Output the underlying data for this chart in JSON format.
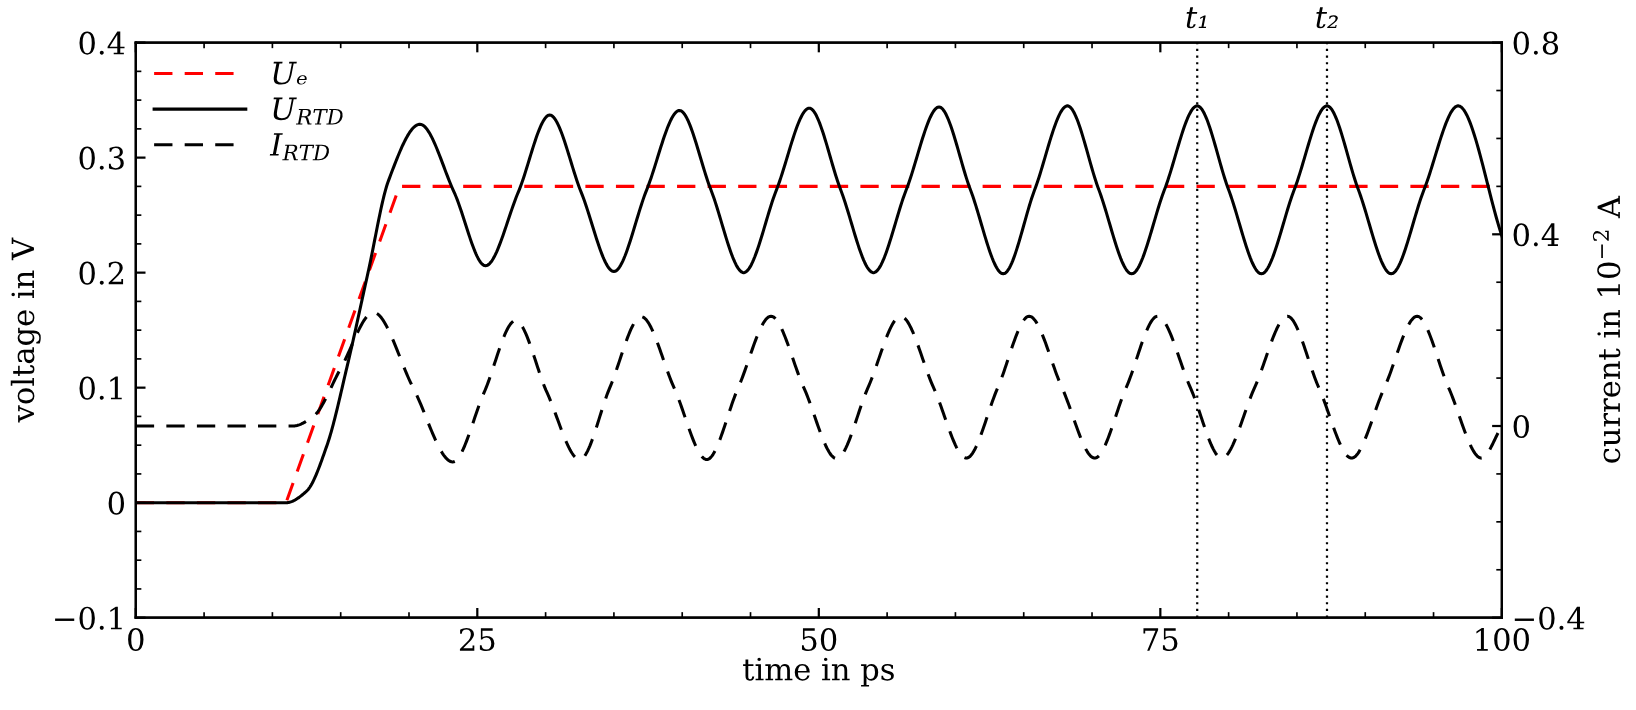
{
  "chart_data": {
    "type": "line",
    "xlabel": "time in ps",
    "ylabel": "voltage in V",
    "y2label": "current in 10$^{−2}$ A",
    "xlim": [
      0,
      100
    ],
    "xticks": [
      0,
      25,
      50,
      75,
      100
    ],
    "ylim": [
      -0.1,
      0.4
    ],
    "yticks": [
      {
        "value": -0.1,
        "label": "−0.1"
      },
      0,
      0.1,
      0.2,
      0.3,
      0.4
    ],
    "y2lim": [
      -0.4,
      0.8
    ],
    "y2ticks": [
      {
        "value": -0.4,
        "label": "−0.4"
      },
      0,
      0.4,
      0.8
    ],
    "grid": false,
    "legend": "top left",
    "marker": "none",
    "ref_lines": [
      {
        "axis": "x",
        "value": 77.7,
        "label": "t₁",
        "line_style": "dotted",
        "color": "#000000"
      },
      {
        "axis": "x",
        "value": 87.2,
        "label": "t₂",
        "line_style": "dotted",
        "color": "#000000"
      }
    ],
    "series": [
      {
        "name": "Uₑ",
        "color": "#ff0000",
        "line_style": "dashed",
        "x": [
          0,
          11,
          19.3,
          100
        ],
        "values": [
          0,
          0,
          0.275,
          0.275
        ]
      },
      {
        "name": "U$_{RTD}$",
        "color": "#000000",
        "line_style": "solid",
        "x": [
          0,
          11,
          12.5,
          14,
          15.5,
          17,
          18.5,
          20.8,
          23.3,
          25.6,
          28,
          30.3,
          32.6,
          35.0,
          37.4,
          39.8,
          42.1,
          44.5,
          46.9,
          49.3,
          51.6,
          54.0,
          56.4,
          58.8,
          61.1,
          63.5,
          65.8,
          68.2,
          70.5,
          72.9,
          75.3,
          77.7,
          80.0,
          82.4,
          84.8,
          87.2,
          89.5,
          91.9,
          94.3,
          96.8,
          100
        ],
        "values": [
          0,
          0,
          0.01,
          0.05,
          0.12,
          0.2,
          0.28,
          0.329,
          0.27,
          0.206,
          0.27,
          0.337,
          0.27,
          0.201,
          0.272,
          0.341,
          0.272,
          0.2,
          0.272,
          0.343,
          0.272,
          0.2,
          0.272,
          0.344,
          0.272,
          0.199,
          0.272,
          0.345,
          0.272,
          0.199,
          0.272,
          0.345,
          0.272,
          0.199,
          0.272,
          0.345,
          0.272,
          0.199,
          0.272,
          0.345,
          0.232
        ]
      },
      {
        "name": "I$_{RTD}$",
        "color": "#000000",
        "line_style": "dashed",
        "axis": "y2",
        "x": [
          0,
          11.5,
          13,
          15,
          17.4,
          20.3,
          23.2,
          25.5,
          27.8,
          30.1,
          32.5,
          34.7,
          37.0,
          39.4,
          41.8,
          44.1,
          46.5,
          48.9,
          51.3,
          53.6,
          56.0,
          58.4,
          60.8,
          63.1,
          65.4,
          67.8,
          70.2,
          72.5,
          74.8,
          77.2,
          79.5,
          81.9,
          84.3,
          86.6,
          89.0,
          91.4,
          93.8,
          96.1,
          98.5,
          100
        ],
        "values": [
          0,
          0,
          0.02,
          0.12,
          0.237,
          0.08,
          -0.075,
          0.07,
          0.22,
          0.07,
          -0.07,
          0.08,
          0.228,
          0.08,
          -0.07,
          0.08,
          0.229,
          0.08,
          -0.068,
          0.08,
          0.229,
          0.08,
          -0.067,
          0.08,
          0.229,
          0.08,
          -0.067,
          0.08,
          0.229,
          0.08,
          -0.067,
          0.08,
          0.229,
          0.08,
          -0.067,
          0.08,
          0.229,
          0.08,
          -0.067,
          0.0
        ]
      }
    ]
  }
}
